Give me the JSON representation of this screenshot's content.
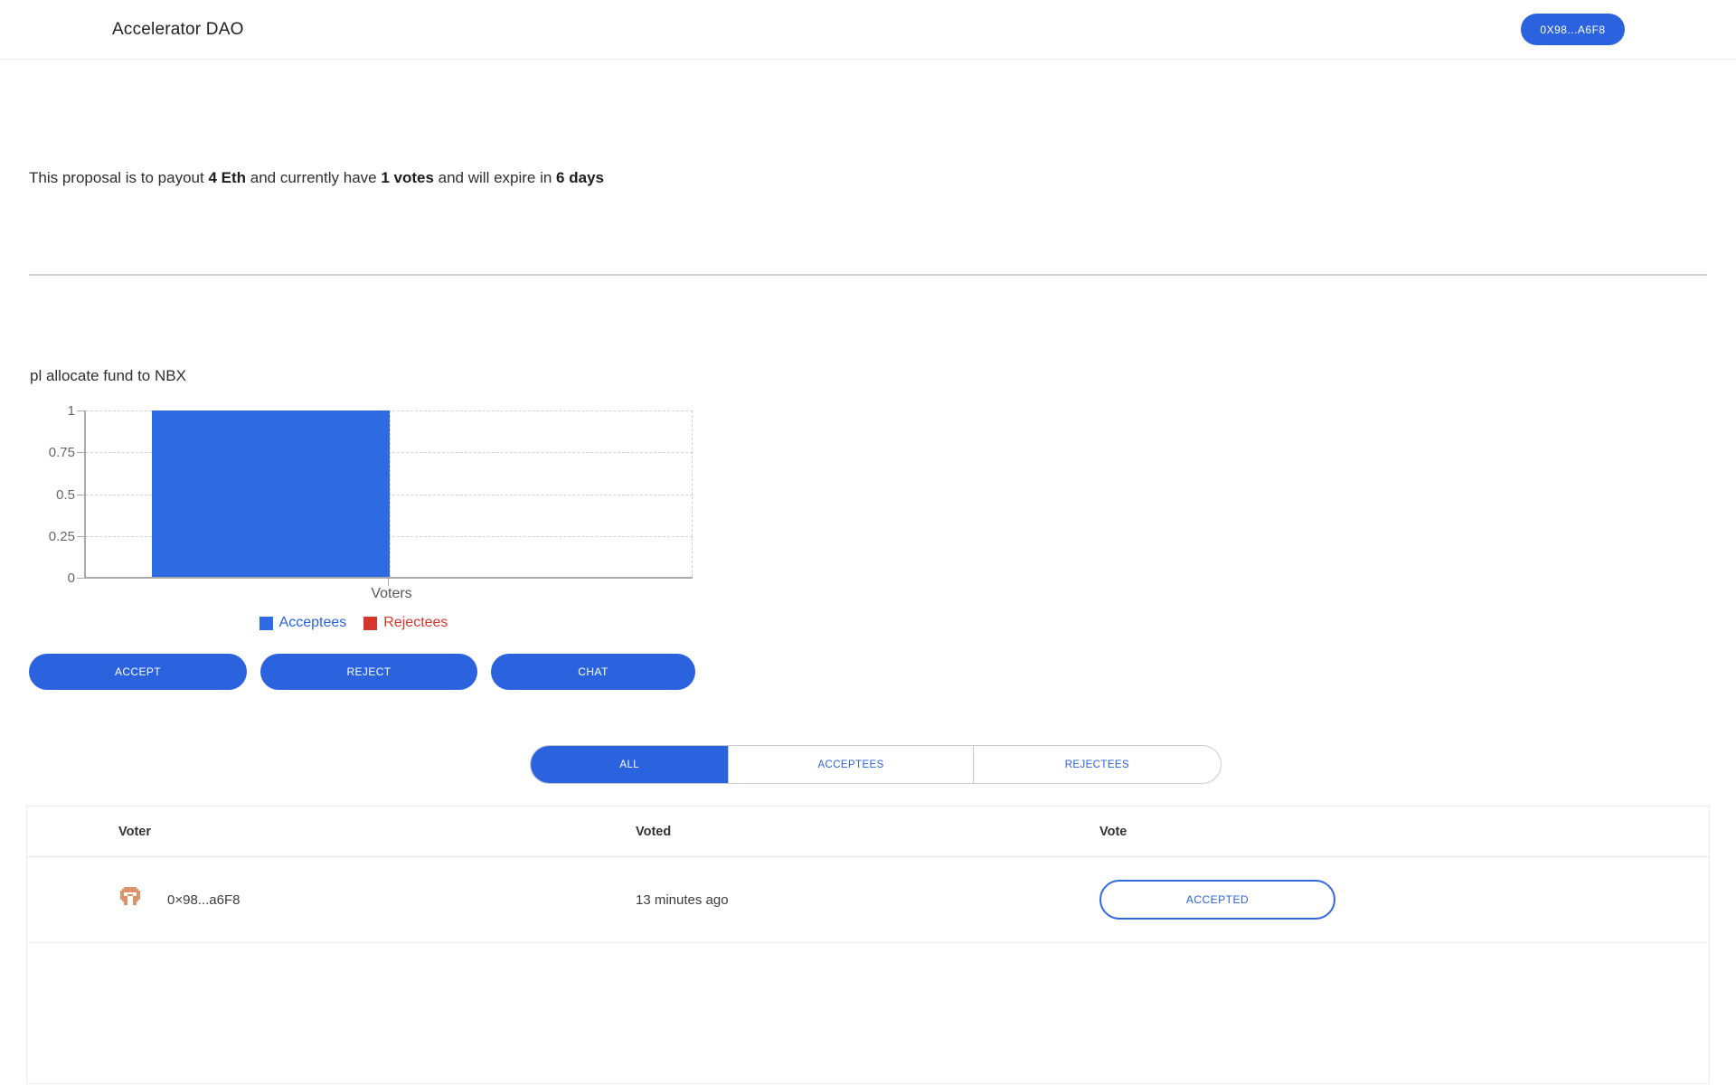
{
  "header": {
    "title": "Accelerator DAO",
    "wallet_button": "0X98...A6F8"
  },
  "summary": {
    "part1": "This proposal is to payout ",
    "amount": "4 Eth",
    "part2": " and currently have ",
    "votes": "1 votes",
    "part3": " and will expire in ",
    "expiry": "6 days"
  },
  "proposal": {
    "title": "pl allocate fund to NBX"
  },
  "chart_data": {
    "type": "bar",
    "categories": [
      "Voters"
    ],
    "series": [
      {
        "name": "Acceptees",
        "values": [
          1
        ],
        "color": "#2e6ae2",
        "label_color": "#2a63dd"
      },
      {
        "name": "Rejectees",
        "values": [
          0
        ],
        "color": "#d7362d",
        "label_color": "#d7362d"
      }
    ],
    "title": "",
    "xlabel": "Voters",
    "ylabel": "",
    "ylim": [
      0,
      1
    ],
    "yticks": [
      0,
      0.25,
      0.5,
      0.75,
      1
    ],
    "grid": "dashed",
    "legend_position": "bottom"
  },
  "actions": {
    "accept": "ACCEPT",
    "reject": "REJECT",
    "chat": "CHAT"
  },
  "tabs": [
    {
      "label": "ALL",
      "selected": true
    },
    {
      "label": "ACCEPTEES",
      "selected": false
    },
    {
      "label": "REJECTEES",
      "selected": false
    }
  ],
  "table": {
    "columns": {
      "voter": "Voter",
      "voted": "Voted",
      "vote": "Vote"
    },
    "rows": [
      {
        "voter": "0×98...a6F8",
        "voted": "13 minutes ago",
        "vote": "ACCEPTED"
      }
    ]
  },
  "colors": {
    "primary_blue": "#2a63dd",
    "bar_blue": "#2e6ae2",
    "legend_red": "#d7362d",
    "avatar_orange": "#dd9468"
  }
}
